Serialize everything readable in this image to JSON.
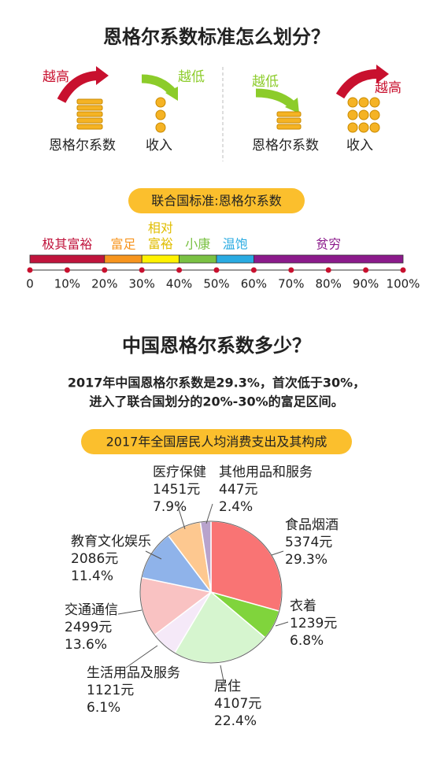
{
  "title": "恩格尔系数标准怎么划分？",
  "diagram_left": {
    "arrow_up_label": "越高",
    "arrow_down_label": "越低",
    "left_caption": "恩格尔系数",
    "right_caption": "收入"
  },
  "diagram_right": {
    "arrow_down_label": "越低",
    "arrow_up_label": "越高",
    "left_caption": "恩格尔系数",
    "right_caption": "收入"
  },
  "scale": {
    "title": "联合国标准:恩格尔系数",
    "xlim": [
      0,
      100
    ],
    "bands": [
      {
        "label": "极其富裕",
        "from": 0,
        "to": 20,
        "color": "#c0143c"
      },
      {
        "label": "富足",
        "from": 20,
        "to": 30,
        "color": "#f7941d"
      },
      {
        "label": "相对富裕",
        "from": 30,
        "to": 40,
        "color": "#fff200"
      },
      {
        "label": "小康",
        "from": 40,
        "to": 50,
        "color": "#7ac143"
      },
      {
        "label": "温饱",
        "from": 50,
        "to": 60,
        "color": "#29abe2"
      },
      {
        "label": "贫穷",
        "from": 60,
        "to": 100,
        "color": "#8b1a8b"
      }
    ],
    "xticks": [
      0,
      {
        "value": 10,
        "label": "10%"
      },
      {
        "value": 20,
        "label": "20%"
      },
      {
        "value": 30,
        "label": "30%"
      },
      {
        "value": 40,
        "label": "40%"
      },
      {
        "value": 50,
        "label": "50%"
      },
      {
        "value": 60,
        "label": "60%"
      },
      {
        "value": 70,
        "label": "70%"
      },
      {
        "value": 80,
        "label": "80%"
      },
      {
        "value": 90,
        "label": "90%"
      },
      {
        "value": 100,
        "label": "100%"
      }
    ]
  },
  "section2": {
    "title": "中国恩格尔系数多少？",
    "text_lines": [
      "2017年中国恩格尔系数是29.3%，首次低于30%，",
      "进入了联合国划分的20%-30%的富足区间。"
    ]
  },
  "chart_data": {
    "type": "pie",
    "title": "2017年全国居民人均消费支出及其构成",
    "categories": [
      "食品烟酒",
      "衣着",
      "居住",
      "生活用品及服务",
      "交通通信",
      "教育文化娱乐",
      "医疗保健",
      "其他用品和服务"
    ],
    "values": [
      29.3,
      6.8,
      22.4,
      6.1,
      13.6,
      11.4,
      7.9,
      2.4
    ],
    "value_labels": [
      "29.3%",
      "6.8%",
      "22.4%",
      "6.1%",
      "13.6%",
      "11.4%",
      "7.9%",
      "2.4%"
    ],
    "amounts": [
      5374,
      1239,
      4107,
      1121,
      2499,
      2086,
      1451,
      447
    ],
    "amount_labels": [
      "5374元",
      "1239元",
      "4107元",
      "1121元",
      "2499元",
      "2086元",
      "1451元",
      "447元"
    ],
    "colors": [
      "#f97474",
      "#80d43c",
      "#d6f5cf",
      "#f5e9f8",
      "#f9c2c2",
      "#8fb3ea",
      "#fdc890",
      "#b8a3cc"
    ]
  }
}
